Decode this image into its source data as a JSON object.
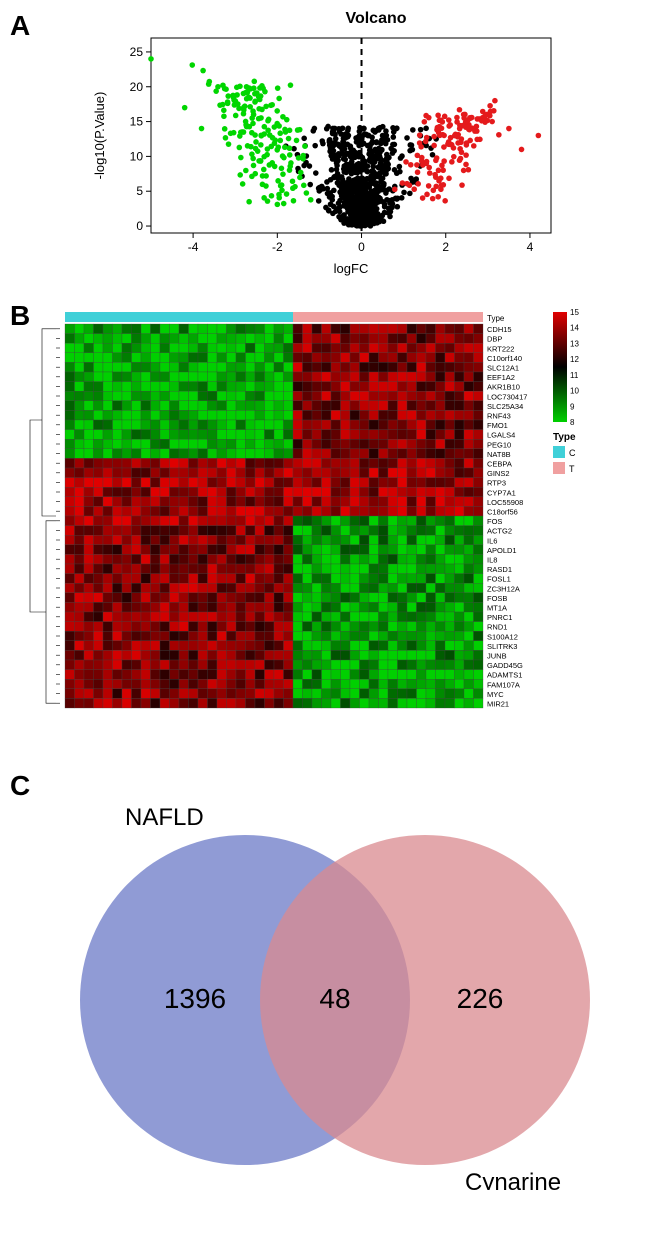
{
  "panelA": {
    "label": "A",
    "title": "Volcano",
    "xlabel": "logFC",
    "ylabel": "-log10(P.Value)",
    "xlim": [
      -5,
      4.5
    ],
    "ylim": [
      -1,
      27
    ],
    "xticks": [
      -4,
      -2,
      0,
      2,
      4
    ],
    "yticks": [
      0,
      5,
      10,
      15,
      20,
      25
    ],
    "colors": {
      "up": "#e41a1c",
      "down": "#00d600",
      "ns": "#000000"
    },
    "axis_color": "#000000",
    "background_color": "#ffffff",
    "point_radius": 2.8,
    "n_points": {
      "down": 180,
      "up": 140,
      "ns": 900
    },
    "threshold_line": {
      "x": 0,
      "dash": "6,5",
      "color": "#000000",
      "width": 2
    }
  },
  "panelB": {
    "label": "B",
    "legend_title": "Type",
    "type_labels": {
      "C": "C",
      "T": "T"
    },
    "type_colors": {
      "C": "#40d0d8",
      "T": "#f0a0a0"
    },
    "color_scale": {
      "min": 8,
      "max": 15,
      "mid": 11.5,
      "ticks": [
        8,
        9,
        10,
        11,
        12,
        13,
        14,
        15
      ]
    },
    "scale_colors": {
      "low": "#00d000",
      "mid": "#000000",
      "high": "#e00000"
    },
    "n_cols": 44,
    "n_type_C": 24,
    "genes": [
      "CDH15",
      "DBP",
      "KRT222",
      "C10orf140",
      "SLC12A1",
      "EEF1A2",
      "AKR1B10",
      "LOC730417",
      "SLC25A34",
      "RNF43",
      "FMO1",
      "LGALS4",
      "PEG10",
      "NAT8B",
      "CEBPA",
      "GINS2",
      "RTP3",
      "CYP7A1",
      "LOC55908",
      "C18orf56",
      "FOS",
      "ACTG2",
      "IL6",
      "APOLD1",
      "IL8",
      "RASD1",
      "FOSL1",
      "ZC3H12A",
      "FOSB",
      "MT1A",
      "PNRC1",
      "RND1",
      "S100A12",
      "SLITRK3",
      "JUNB",
      "GADD45G",
      "ADAMTS1",
      "FAM107A",
      "MYC",
      "MIR21"
    ],
    "row_pattern": [
      0,
      0,
      0,
      0,
      0,
      0,
      0,
      0,
      0,
      0,
      0,
      0,
      0,
      0,
      2,
      2,
      2,
      2,
      2,
      2,
      3,
      1,
      1,
      1,
      1,
      1,
      1,
      1,
      1,
      1,
      1,
      1,
      1,
      1,
      1,
      1,
      1,
      1,
      1,
      1
    ],
    "cell_border": "#404040"
  },
  "panelC": {
    "label": "C",
    "set1": {
      "name": "NAFLD",
      "count": 1396,
      "color": "#6b79c7",
      "opacity": 0.75
    },
    "set2": {
      "name": "Cynarine",
      "count": 226,
      "color": "#d98a8f",
      "opacity": 0.75
    },
    "intersection": 48,
    "font_size_label": 24,
    "font_size_count": 28,
    "text_color": "#000000"
  }
}
